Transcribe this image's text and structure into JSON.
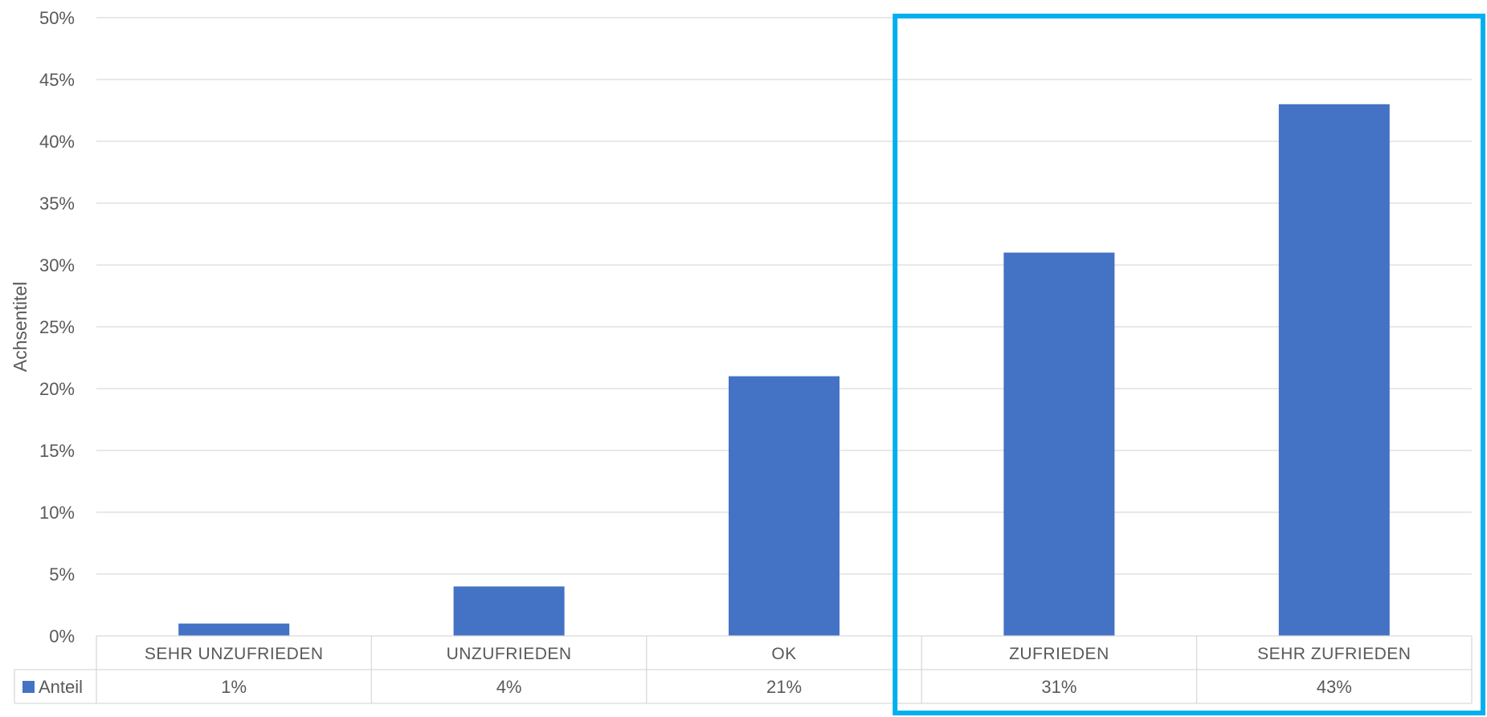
{
  "chart_data": {
    "type": "bar",
    "title": "",
    "xlabel": "",
    "ylabel": "Achsentitel",
    "ylim": [
      0,
      50
    ],
    "y_ticks": [
      "0%",
      "5%",
      "10%",
      "15%",
      "20%",
      "25%",
      "30%",
      "35%",
      "40%",
      "45%",
      "50%"
    ],
    "categories": [
      "SEHR UNZUFRIEDEN",
      "UNZUFRIEDEN",
      "OK",
      "ZUFRIEDEN",
      "SEHR ZUFRIEDEN"
    ],
    "series": [
      {
        "name": "Anteil",
        "values": [
          1,
          4,
          21,
          31,
          43
        ],
        "value_labels": [
          "1%",
          "4%",
          "21%",
          "31%",
          "43%"
        ],
        "color": "#4472C4"
      }
    ],
    "grid": true,
    "legend": "data-table-left",
    "data_table": true,
    "highlight": {
      "categories": [
        "ZUFRIEDEN",
        "SEHR ZUFRIEDEN"
      ],
      "color": "#00B0F0"
    },
    "colors": {
      "gridline": "#D9D9D9",
      "text": "#595959"
    }
  }
}
